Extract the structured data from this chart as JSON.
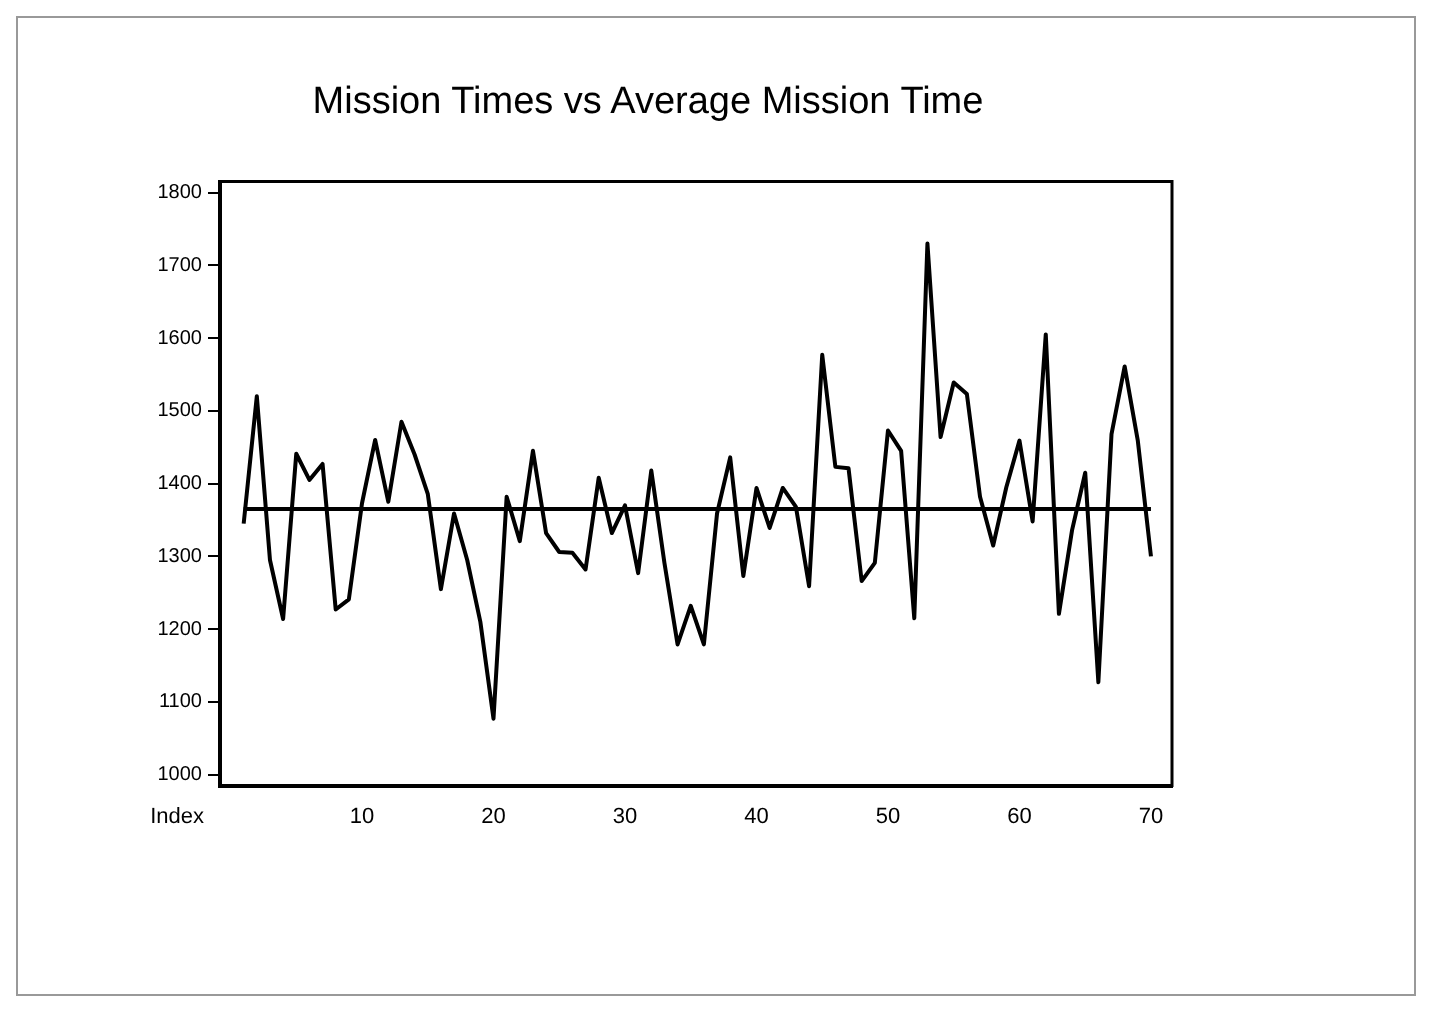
{
  "chart_data": {
    "type": "line",
    "title": "Mission Times vs Average Mission Time",
    "xlabel": "Index",
    "x": [
      1,
      2,
      3,
      4,
      5,
      6,
      7,
      8,
      9,
      10,
      11,
      12,
      13,
      14,
      15,
      16,
      17,
      18,
      19,
      20,
      21,
      22,
      23,
      24,
      25,
      26,
      27,
      28,
      29,
      30,
      31,
      32,
      33,
      34,
      35,
      36,
      37,
      38,
      39,
      40,
      41,
      42,
      43,
      44,
      45,
      46,
      47,
      48,
      49,
      50,
      51,
      52,
      53,
      54,
      55,
      56,
      57,
      58,
      59,
      60,
      61,
      62,
      63,
      64,
      65,
      66,
      67,
      68,
      69,
      70
    ],
    "series": [
      {
        "color": "#000000",
        "values": [
          1345,
          1520,
          1295,
          1214,
          1441,
          1405,
          1427,
          1227,
          1241,
          1373,
          1460,
          1375,
          1485,
          1440,
          1386,
          1255,
          1359,
          1295,
          1210,
          1077,
          1382,
          1321,
          1445,
          1332,
          1306,
          1305,
          1282,
          1408,
          1332,
          1370,
          1277,
          1418,
          1291,
          1179,
          1232,
          1179,
          1359,
          1436,
          1273,
          1394,
          1339,
          1394,
          1368,
          1259,
          1577,
          1423,
          1421,
          1266,
          1291,
          1473,
          1445,
          1215,
          1730,
          1464,
          1539,
          1523,
          1382,
          1315,
          1395,
          1459,
          1348,
          1605,
          1221,
          1336,
          1415,
          1127,
          1468,
          1561,
          1459,
          1300
        ]
      }
    ],
    "ref_lines": [
      {
        "axis": "y",
        "value": 1365,
        "color": "#000000"
      }
    ],
    "xlim": [
      -0.8,
      71.6
    ],
    "xticks": [
      10,
      20,
      30,
      40,
      50,
      60,
      70
    ],
    "ylim": [
      985,
      1815
    ],
    "yticks": [
      1000,
      1100,
      1200,
      1300,
      1400,
      1500,
      1600,
      1700,
      1800
    ],
    "grid": false,
    "legend": false,
    "marker": "none",
    "line_style": "solid"
  }
}
